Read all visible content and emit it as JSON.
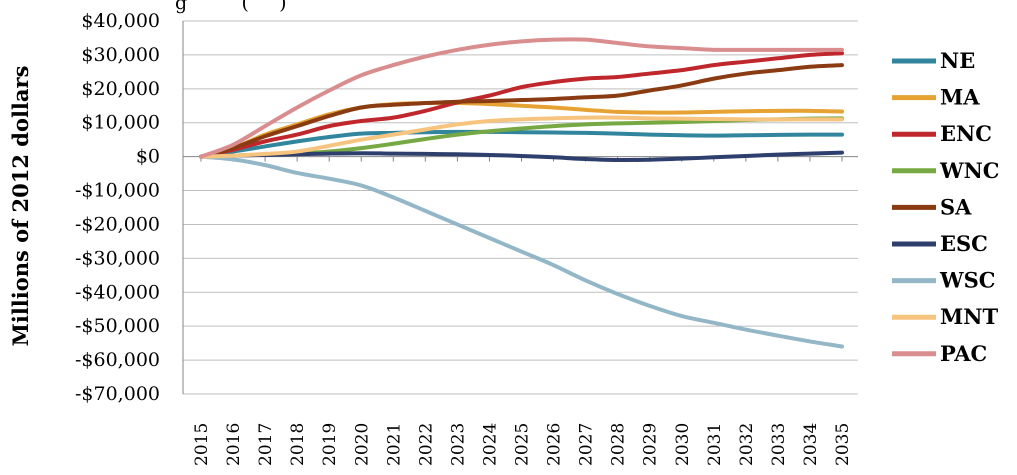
{
  "chart_data": {
    "type": "line",
    "title_fragment": "g         (     )",
    "ylabel": "Millions of 2012 dollars",
    "ylim": [
      -70000,
      40000
    ],
    "yticks": [
      40000,
      30000,
      20000,
      10000,
      0,
      -10000,
      -20000,
      -30000,
      -40000,
      -50000,
      -60000,
      -70000
    ],
    "ytick_labels": [
      "$40,000",
      "$30,000",
      "$20,000",
      "$10,000",
      "$0",
      "-$10,000",
      "-$20,000",
      "-$30,000",
      "-$40,000",
      "-$50,000",
      "-$60,000",
      "-$70,000"
    ],
    "x": [
      "2015",
      "2016",
      "2017",
      "2018",
      "2019",
      "2020",
      "2021",
      "2022",
      "2023",
      "2024",
      "2025",
      "2026",
      "2027",
      "2028",
      "2029",
      "2030",
      "2031",
      "2032",
      "2033",
      "2034",
      "2035"
    ],
    "grid": "horizontal",
    "legend_position": "right",
    "series": [
      {
        "name": "NE",
        "color": "#31859c",
        "values": [
          0,
          1500,
          3000,
          4500,
          5800,
          6800,
          7000,
          7200,
          7300,
          7300,
          7200,
          7100,
          7000,
          6800,
          6500,
          6300,
          6200,
          6300,
          6400,
          6500,
          6500
        ]
      },
      {
        "name": "MA",
        "color": "#e6a232",
        "values": [
          0,
          2500,
          6500,
          9500,
          12500,
          14500,
          15500,
          15800,
          15800,
          15500,
          15000,
          14500,
          13800,
          13200,
          13000,
          13000,
          13200,
          13400,
          13500,
          13500,
          13300
        ]
      },
      {
        "name": "ENC",
        "color": "#c0272d",
        "values": [
          0,
          2000,
          4500,
          6500,
          9000,
          10500,
          11500,
          13500,
          16000,
          18000,
          20500,
          22000,
          23000,
          23500,
          24500,
          25500,
          27000,
          28000,
          29000,
          30000,
          30500
        ]
      },
      {
        "name": "WNC",
        "color": "#76a843",
        "values": [
          0,
          300,
          600,
          900,
          1500,
          2500,
          3800,
          5200,
          6500,
          7500,
          8300,
          9000,
          9500,
          9800,
          10000,
          10200,
          10500,
          10800,
          11000,
          11200,
          11300
        ]
      },
      {
        "name": "SA",
        "color": "#8a3b12",
        "values": [
          0,
          2500,
          6000,
          9000,
          12000,
          14500,
          15300,
          15800,
          16200,
          16400,
          16700,
          17000,
          17500,
          18000,
          19500,
          21000,
          23000,
          24500,
          25500,
          26500,
          27000
        ]
      },
      {
        "name": "ESC",
        "color": "#2e3f6e",
        "values": [
          0,
          300,
          500,
          700,
          900,
          1000,
          900,
          800,
          700,
          500,
          200,
          -200,
          -700,
          -1000,
          -900,
          -600,
          -200,
          200,
          600,
          900,
          1200
        ]
      },
      {
        "name": "WSC",
        "color": "#93b7c6",
        "values": [
          0,
          -800,
          -2500,
          -4800,
          -6500,
          -8500,
          -12000,
          -16000,
          -20000,
          -24000,
          -28000,
          -32000,
          -36500,
          -40500,
          -44000,
          -47000,
          -49000,
          -51000,
          -52800,
          -54500,
          -56000
        ]
      },
      {
        "name": "MNT",
        "color": "#f7c47f",
        "values": [
          0,
          300,
          800,
          1500,
          3200,
          5000,
          6500,
          8000,
          9500,
          10500,
          11000,
          11300,
          11500,
          11500,
          11300,
          11200,
          11100,
          11000,
          11000,
          11000,
          11000
        ]
      },
      {
        "name": "PAC",
        "color": "#d98d8f",
        "values": [
          0,
          3500,
          9000,
          14500,
          19500,
          24000,
          27000,
          29500,
          31500,
          33000,
          34000,
          34500,
          34500,
          33500,
          32500,
          32000,
          31500,
          31500,
          31500,
          31500,
          31500
        ]
      }
    ]
  }
}
